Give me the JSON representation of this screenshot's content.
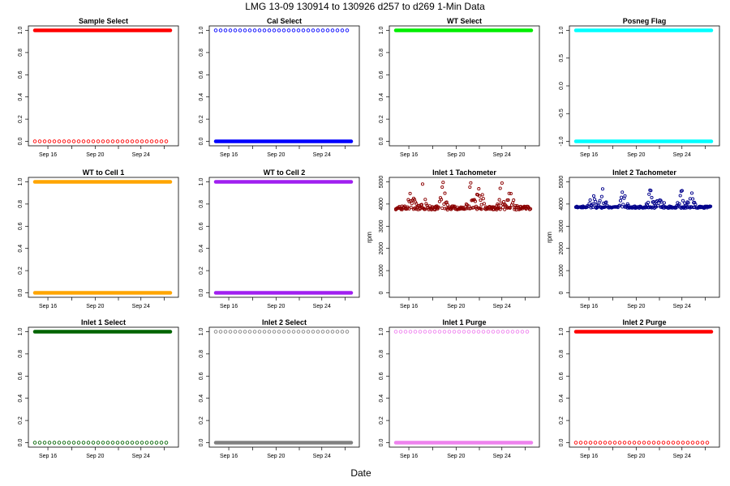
{
  "main_title": "LMG   13-09    130914 to 130926    d257 to d269   1-Min Data",
  "xlabel": "Date",
  "chart_data": [
    {
      "type": "scatter",
      "title": "Sample Select",
      "color": "#ff0000",
      "x_ticks": [
        "Sep 16",
        "Sep 20",
        "Sep 24"
      ],
      "y_ticks": [
        "0.0",
        "0.2",
        "0.4",
        "0.6",
        "0.8",
        "1.0"
      ],
      "ylim": [
        0,
        1
      ],
      "ylabel": "",
      "levels": [
        {
          "y": 1,
          "style": "band"
        },
        {
          "y": 0,
          "style": "sparse"
        }
      ]
    },
    {
      "type": "scatter",
      "title": "Cal Select",
      "color": "#0000ff",
      "x_ticks": [
        "Sep 16",
        "Sep 20",
        "Sep 24"
      ],
      "y_ticks": [
        "0.0",
        "0.2",
        "0.4",
        "0.6",
        "0.8",
        "1.0"
      ],
      "ylim": [
        0,
        1
      ],
      "ylabel": "",
      "levels": [
        {
          "y": 1,
          "style": "sparse"
        },
        {
          "y": 0,
          "style": "band"
        }
      ]
    },
    {
      "type": "scatter",
      "title": "WT Select",
      "color": "#00ee00",
      "x_ticks": [
        "Sep 16",
        "Sep 20",
        "Sep 24"
      ],
      "y_ticks": [
        "0.0",
        "0.2",
        "0.4",
        "0.6",
        "0.8",
        "1.0"
      ],
      "ylim": [
        0,
        1
      ],
      "ylabel": "",
      "levels": [
        {
          "y": 1,
          "style": "band"
        }
      ]
    },
    {
      "type": "scatter",
      "title": "Posneg Flag",
      "color": "#00ffff",
      "x_ticks": [
        "Sep 16",
        "Sep 20",
        "Sep 24"
      ],
      "y_ticks": [
        "-1.0",
        "-0.5",
        "0.0",
        "0.5",
        "1.0"
      ],
      "ylim": [
        -1,
        1
      ],
      "ylabel": "",
      "levels": [
        {
          "y": 1,
          "style": "band"
        },
        {
          "y": -1,
          "style": "band"
        }
      ]
    },
    {
      "type": "scatter",
      "title": "WT to Cell 1",
      "color": "#ffa500",
      "x_ticks": [
        "Sep 16",
        "Sep 20",
        "Sep 24"
      ],
      "y_ticks": [
        "0.0",
        "0.2",
        "0.4",
        "0.6",
        "0.8",
        "1.0"
      ],
      "ylim": [
        0,
        1
      ],
      "ylabel": "",
      "levels": [
        {
          "y": 1,
          "style": "band"
        },
        {
          "y": 0,
          "style": "band"
        }
      ]
    },
    {
      "type": "scatter",
      "title": "WT to Cell 2",
      "color": "#a020f0",
      "x_ticks": [
        "Sep 16",
        "Sep 20",
        "Sep 24"
      ],
      "y_ticks": [
        "0.0",
        "0.2",
        "0.4",
        "0.6",
        "0.8",
        "1.0"
      ],
      "ylim": [
        0,
        1
      ],
      "ylabel": "",
      "levels": [
        {
          "y": 1,
          "style": "band"
        },
        {
          "y": 0,
          "style": "band"
        }
      ]
    },
    {
      "type": "scatter",
      "title": "Inlet 1 Tachometer",
      "color": "#8b0000",
      "x_ticks": [
        "Sep 16",
        "Sep 20",
        "Sep 24"
      ],
      "y_ticks": [
        "0",
        "1000",
        "2000",
        "3000",
        "4000",
        "5000"
      ],
      "ylim": [
        0,
        5200
      ],
      "ylabel": "rpm",
      "baseline": 3950,
      "max": 5200,
      "noise": 500
    },
    {
      "type": "scatter",
      "title": "Inlet 2 Tachometer",
      "color": "#00008b",
      "x_ticks": [
        "Sep 16",
        "Sep 20",
        "Sep 24"
      ],
      "y_ticks": [
        "0",
        "1000",
        "2000",
        "3000",
        "4000",
        "5000"
      ],
      "ylim": [
        0,
        5200
      ],
      "ylabel": "rpm",
      "baseline": 4000,
      "max": 4900,
      "noise": 250
    },
    {
      "type": "scatter",
      "title": "Inlet 1 Select",
      "color": "#006400",
      "x_ticks": [
        "Sep 16",
        "Sep 20",
        "Sep 24"
      ],
      "y_ticks": [
        "0.0",
        "0.2",
        "0.4",
        "0.6",
        "0.8",
        "1.0"
      ],
      "ylim": [
        0,
        1
      ],
      "ylabel": "",
      "levels": [
        {
          "y": 1,
          "style": "band"
        },
        {
          "y": 0,
          "style": "sparse"
        }
      ]
    },
    {
      "type": "scatter",
      "title": "Inlet 2 Select",
      "color": "#808080",
      "x_ticks": [
        "Sep 16",
        "Sep 20",
        "Sep 24"
      ],
      "y_ticks": [
        "0.0",
        "0.2",
        "0.4",
        "0.6",
        "0.8",
        "1.0"
      ],
      "ylim": [
        0,
        1
      ],
      "ylabel": "",
      "levels": [
        {
          "y": 1,
          "style": "sparse"
        },
        {
          "y": 0,
          "style": "band"
        }
      ]
    },
    {
      "type": "scatter",
      "title": "Inlet 1 Purge",
      "color": "#ee82ee",
      "x_ticks": [
        "Sep 16",
        "Sep 20",
        "Sep 24"
      ],
      "y_ticks": [
        "0.0",
        "0.2",
        "0.4",
        "0.6",
        "0.8",
        "1.0"
      ],
      "ylim": [
        0,
        1
      ],
      "ylabel": "",
      "levels": [
        {
          "y": 1,
          "style": "sparse"
        },
        {
          "y": 0,
          "style": "band"
        }
      ]
    },
    {
      "type": "scatter",
      "title": "Inlet 2 Purge",
      "color": "#ff0000",
      "x_ticks": [
        "Sep 16",
        "Sep 20",
        "Sep 24"
      ],
      "y_ticks": [
        "0.0",
        "0.2",
        "0.4",
        "0.6",
        "0.8",
        "1.0"
      ],
      "ylim": [
        0,
        1
      ],
      "ylabel": "",
      "levels": [
        {
          "y": 1,
          "style": "band"
        },
        {
          "y": 0,
          "style": "sparse"
        }
      ]
    }
  ]
}
